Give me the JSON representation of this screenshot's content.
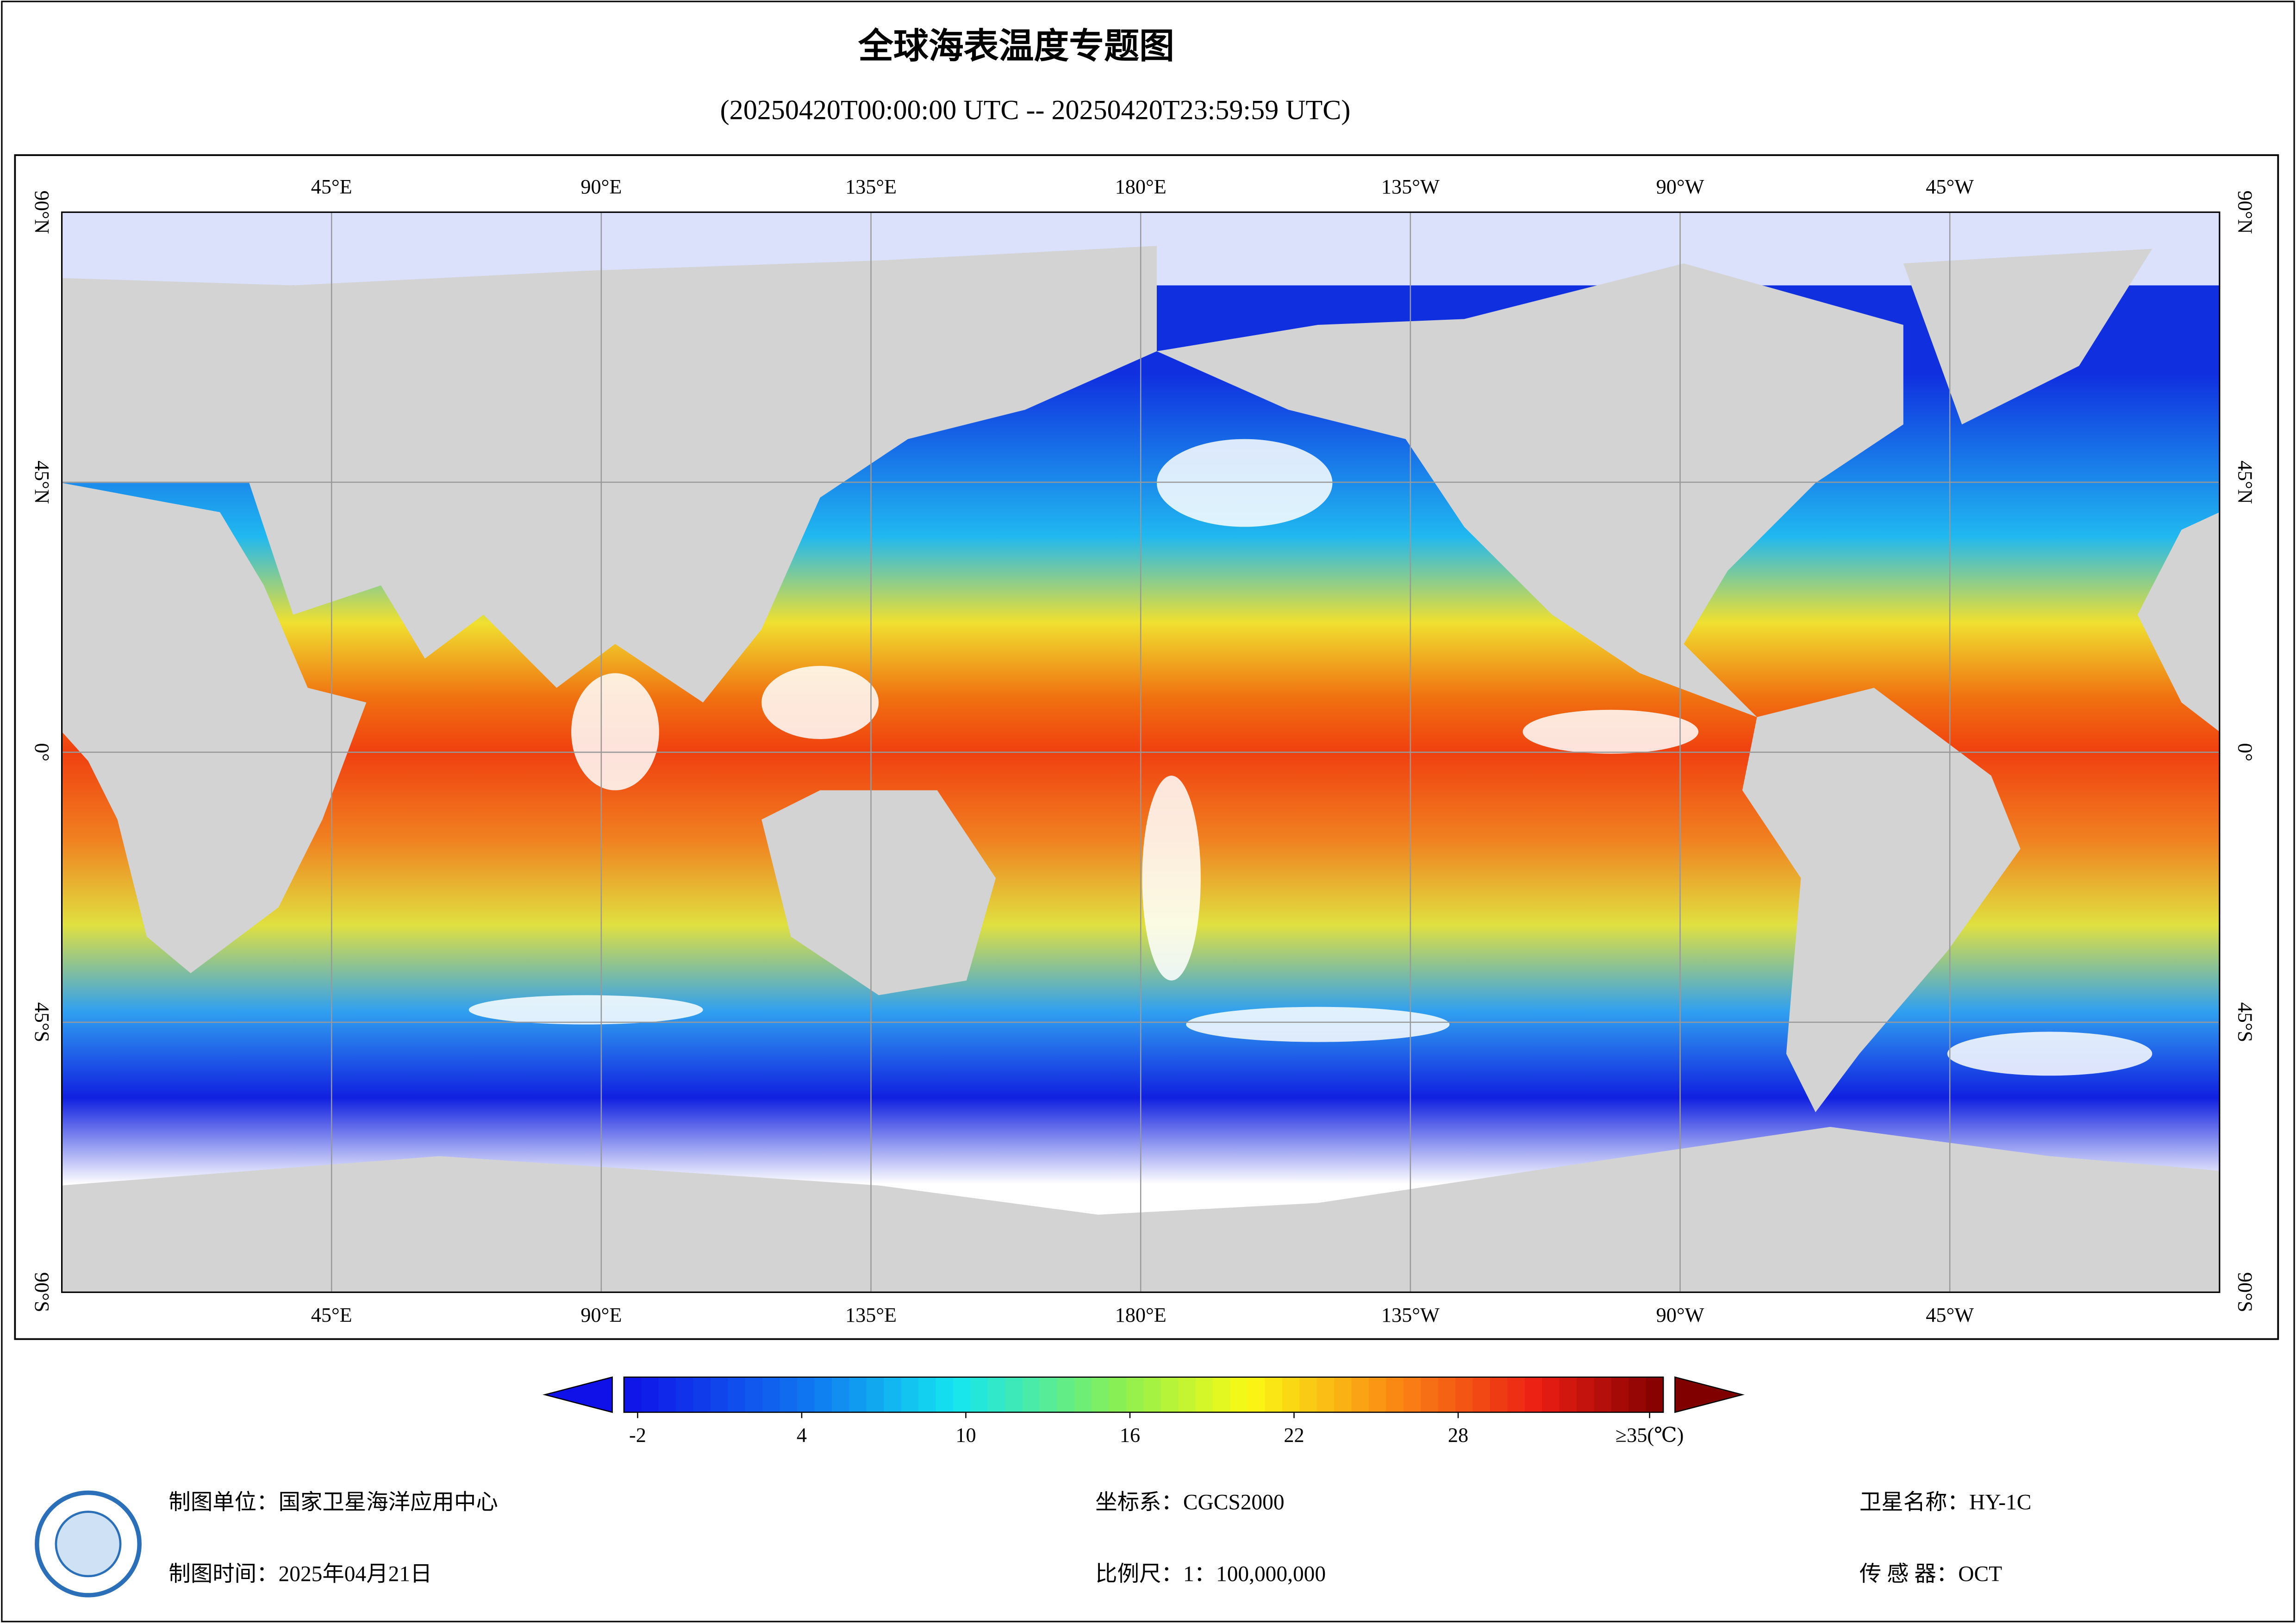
{
  "header": {
    "title": "全球海表温度专题图",
    "subtitle": "(20250420T00:00:00 UTC -- 20250420T23:59:59 UTC)"
  },
  "map": {
    "lonlim": [
      0,
      360
    ],
    "latlim": [
      -90,
      90
    ],
    "lonticks": [
      {
        "value": 45,
        "label": "45°E"
      },
      {
        "value": 90,
        "label": "90°E"
      },
      {
        "value": 135,
        "label": "135°E"
      },
      {
        "value": 180,
        "label": "180°E"
      },
      {
        "value": 225,
        "label": "135°W"
      },
      {
        "value": 270,
        "label": "90°W"
      },
      {
        "value": 315,
        "label": "45°W"
      }
    ],
    "latticks": [
      {
        "value": 90,
        "label": "90°N"
      },
      {
        "value": 45,
        "label": "45°N"
      },
      {
        "value": 0,
        "label": "0°"
      },
      {
        "value": -45,
        "label": "45°S"
      },
      {
        "value": -90,
        "label": "90°S"
      }
    ],
    "grid": true
  },
  "colorbar": {
    "range": [
      -2.5,
      35.5
    ],
    "ticks": [
      -2,
      4,
      10,
      16,
      22,
      28,
      {
        "value": 35,
        "label": "≥35(℃)"
      }
    ]
  },
  "footer": {
    "unit": "制图单位：国家卫星海洋应用中心",
    "time": "制图时间：2025年04月21日",
    "crs": "坐标系：CGCS2000",
    "scale": "比例尺：1：100,000,000",
    "satellite": "卫星名称：HY-1C",
    "sensor": "传 感 器：OCT"
  }
}
